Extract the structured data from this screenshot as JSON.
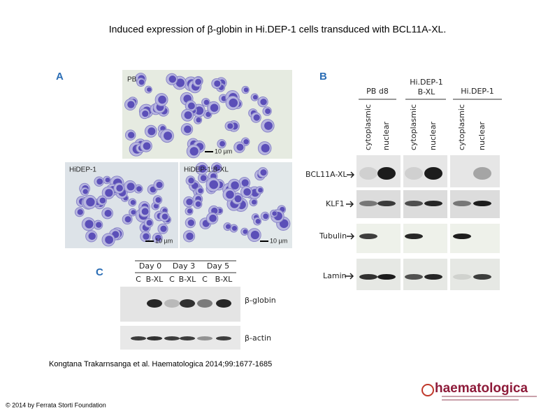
{
  "title": "Induced expression of β-globin in Hi.DEP-1 cells transduced with BCL11A-XL.",
  "figure": {
    "panel_a": {
      "label": "A",
      "images": [
        {
          "label": "PB",
          "scale": "10 µm"
        },
        {
          "label": "HiDEP-1",
          "scale": "10 µm"
        },
        {
          "label": "HiDEP-1:B-XL",
          "scale": "10 µm"
        }
      ]
    },
    "panel_b": {
      "label": "B",
      "groups": [
        "PB d8",
        "Hi.DEP-1",
        "B-XL",
        "Hi.DEP-1"
      ],
      "lanes": [
        "cytoplasmic",
        "nuclear",
        "cytoplasmic",
        "nuclear",
        "cytoplasmic",
        "nuclear"
      ],
      "rows": [
        "BCL11A-XL",
        "KLF1",
        "Tubulin",
        "Lamin"
      ]
    },
    "panel_c": {
      "label": "C",
      "days": [
        "Day 0",
        "Day 3",
        "Day 5"
      ],
      "lanes": [
        "C",
        "B-XL",
        "C",
        "B-XL",
        "C",
        "B-XL"
      ],
      "rows": [
        "β-globin",
        "β-actin"
      ]
    }
  },
  "citation": "Kongtana Trakarnsanga et al. Haematologica 2014;99:1677-1685",
  "copyright": "© 2014 by Ferrata Storti Foundation",
  "logo": "haematologica"
}
